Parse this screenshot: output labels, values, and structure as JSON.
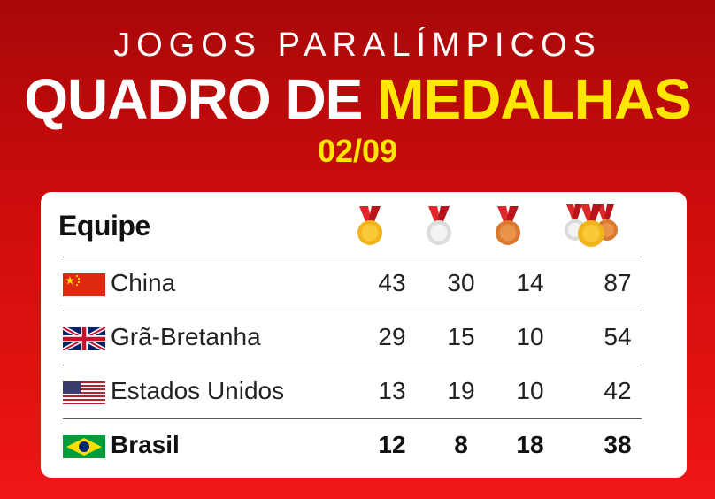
{
  "header": {
    "subtitle": "JOGOS PARALÍMPICOS",
    "title_white": "QUADRO DE",
    "title_yellow": "MEDALHAS",
    "date": "02/09"
  },
  "table": {
    "team_header": "Equipe",
    "columns": [
      {
        "icon": "gold-medal-icon"
      },
      {
        "icon": "silver-medal-icon"
      },
      {
        "icon": "bronze-medal-icon"
      },
      {
        "icon": "total-medals-icon"
      }
    ],
    "rows": [
      {
        "team": "China",
        "flag": "china-flag-icon",
        "gold": "43",
        "silver": "30",
        "bronze": "14",
        "total": "87"
      },
      {
        "team": "Grã-Bretanha",
        "flag": "uk-flag-icon",
        "gold": "29",
        "silver": "15",
        "bronze": "10",
        "total": "54"
      },
      {
        "team": "Estados Unidos",
        "flag": "usa-flag-icon",
        "gold": "13",
        "silver": "19",
        "bronze": "10",
        "total": "42"
      },
      {
        "team": "Brasil",
        "flag": "brazil-flag-icon",
        "gold": "12",
        "silver": "8",
        "bronze": "18",
        "total": "38"
      }
    ]
  },
  "colors": {
    "background_top": "#a80808",
    "background_bottom": "#f01616",
    "accent_yellow": "#ffe600",
    "gold": "#f3b31c",
    "silver": "#e6e6e6",
    "bronze": "#d9782e",
    "ribbon": "#e0262b"
  }
}
